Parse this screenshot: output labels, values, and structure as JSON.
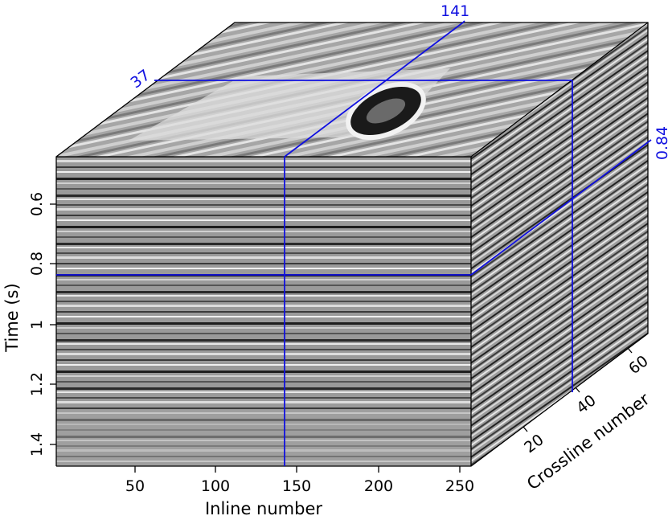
{
  "chart_data": {
    "type": "seismic-cube",
    "axes": {
      "inline": {
        "label": "Inline number",
        "ticks": [
          "50",
          "100",
          "150",
          "200",
          "250"
        ],
        "range": [
          1,
          256
        ]
      },
      "time": {
        "label": "Time (s)",
        "ticks": [
          "0.6",
          "0.8",
          "1",
          "1.2",
          "1.4"
        ],
        "range": [
          0.49,
          1.48
        ]
      },
      "crossline": {
        "label": "Crossline number",
        "ticks": [
          "20",
          "40",
          "60"
        ],
        "range": [
          1,
          68
        ]
      }
    },
    "slice_markers": {
      "inline": "141",
      "crossline": "37",
      "time": "0.84"
    },
    "colors": {
      "slice_lines": "#1010e0",
      "frame": "#000000",
      "background": "#ffffff"
    },
    "colormap": "grayscale"
  }
}
